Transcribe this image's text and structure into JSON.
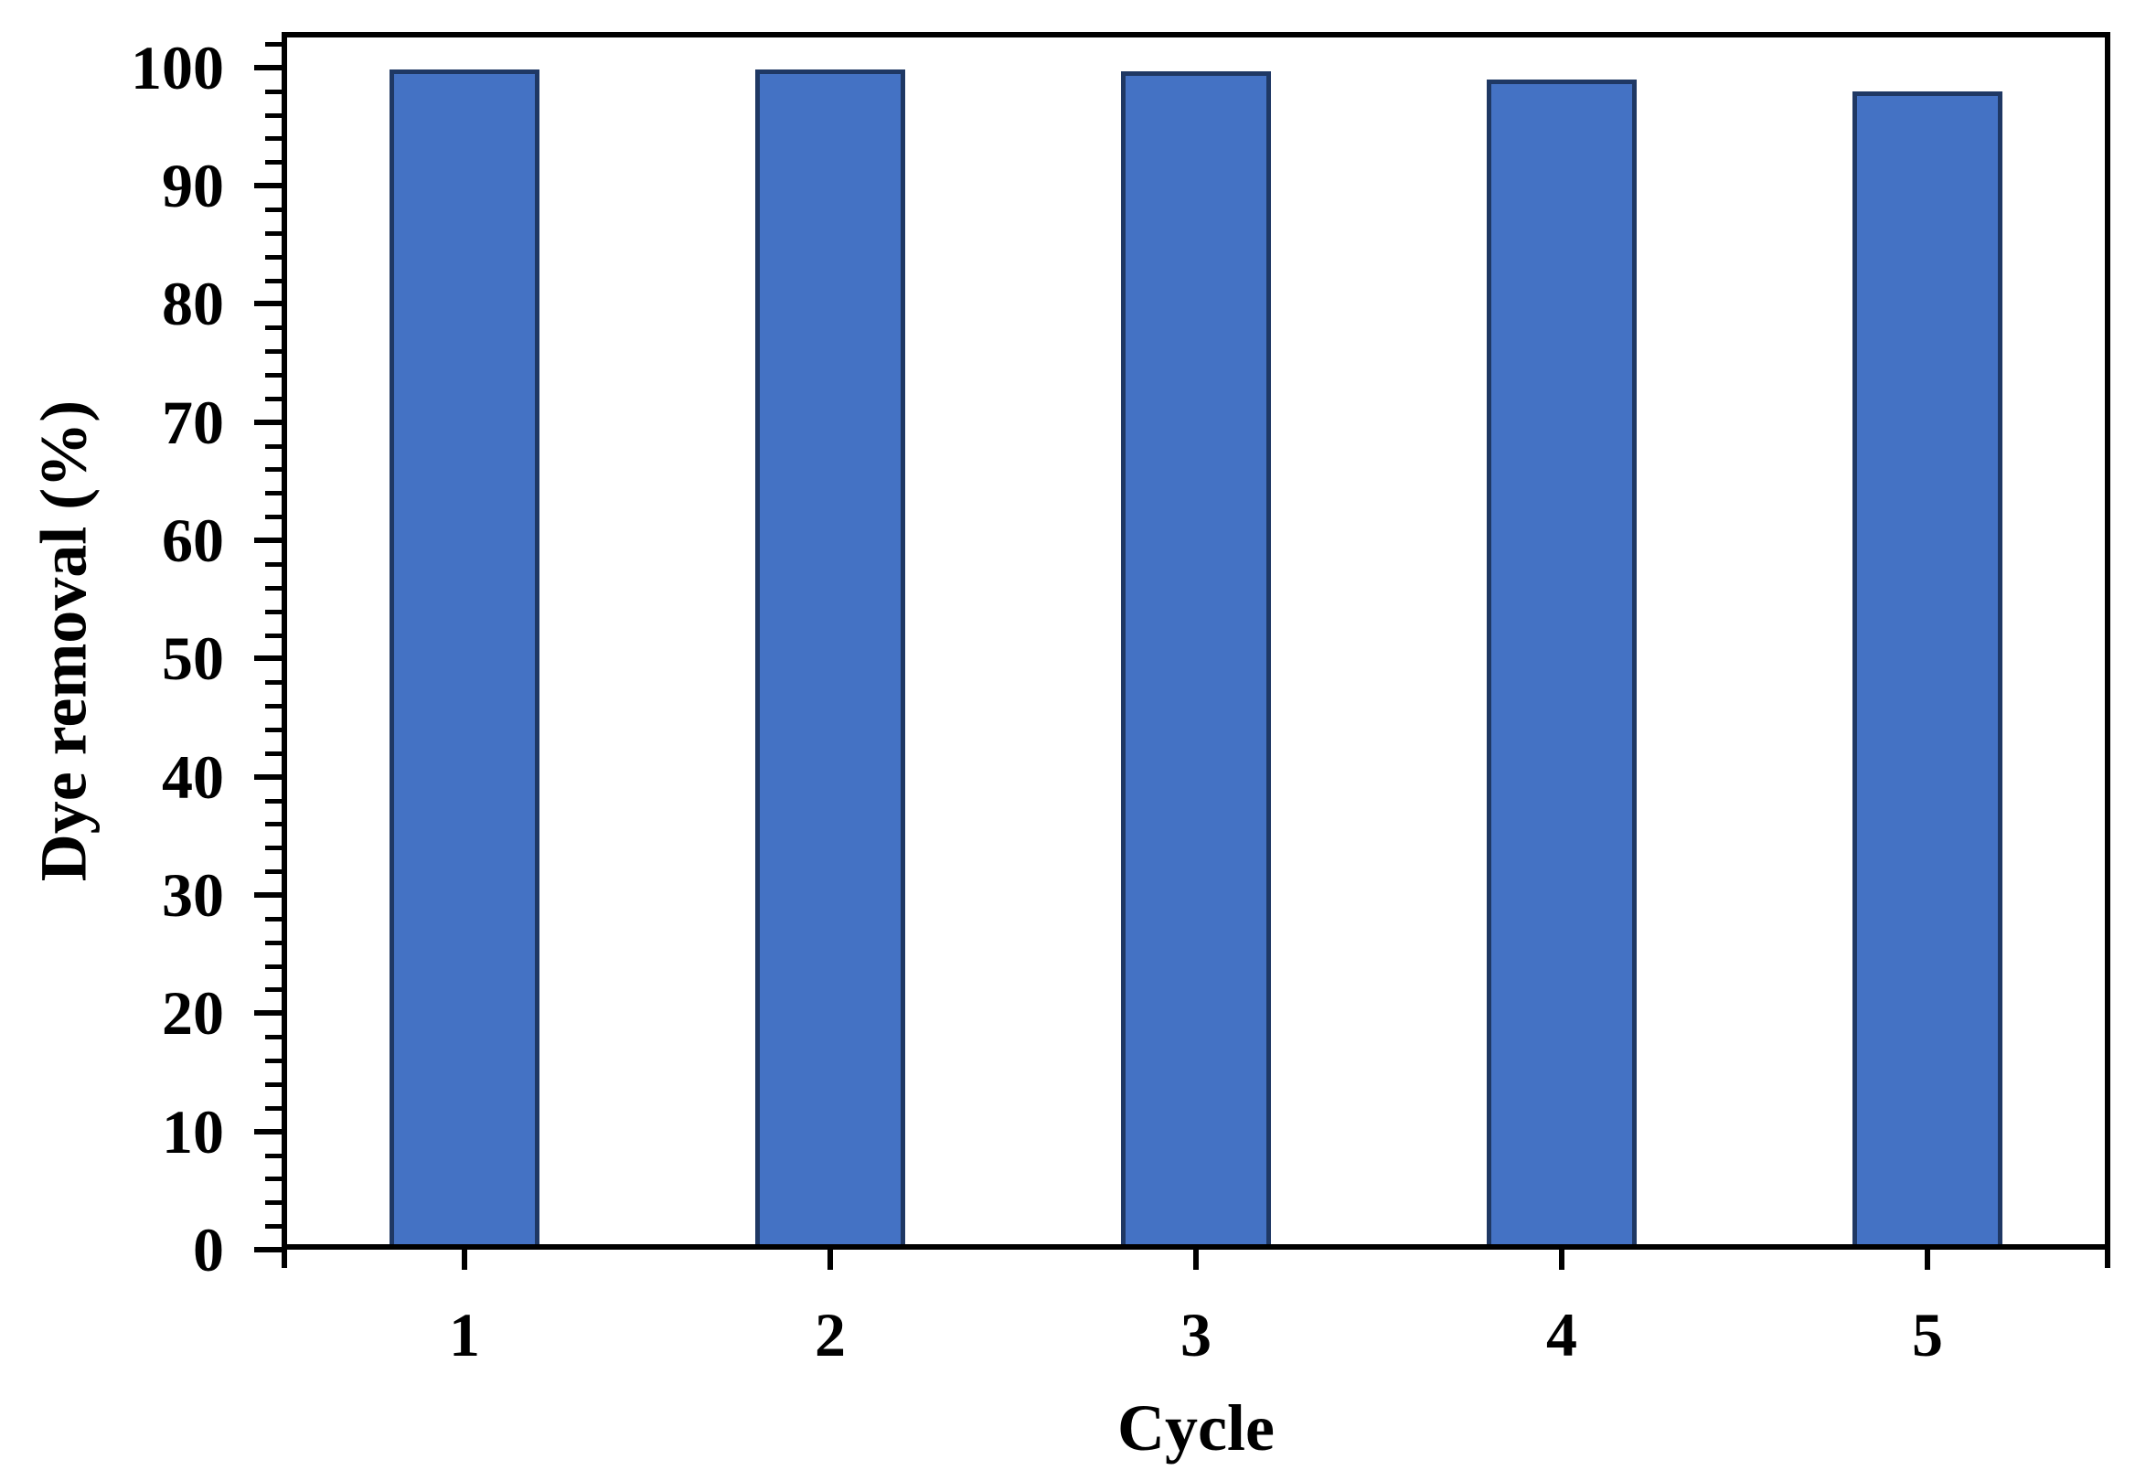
{
  "chart_data": {
    "type": "bar",
    "categories": [
      "1",
      "2",
      "3",
      "4",
      "5"
    ],
    "values": [
      99.8,
      99.8,
      99.7,
      99.0,
      98.0
    ],
    "xlabel": "Cycle",
    "ylabel": "Dye removal (%)",
    "ylim": [
      0,
      103
    ],
    "y_major_ticks": [
      0,
      10,
      20,
      30,
      40,
      50,
      60,
      70,
      80,
      90,
      100
    ],
    "y_tick_labels": [
      "0",
      "10",
      "20",
      "30",
      "40",
      "50",
      "60",
      "70",
      "80",
      "90",
      "100"
    ],
    "y_minor_tick_interval": 2,
    "grid": false,
    "legend": "none",
    "colors": {
      "bar_fill": "#4472C4",
      "bar_border": "#1F3864",
      "axis": "#000000",
      "background": "#FFFFFF"
    }
  }
}
